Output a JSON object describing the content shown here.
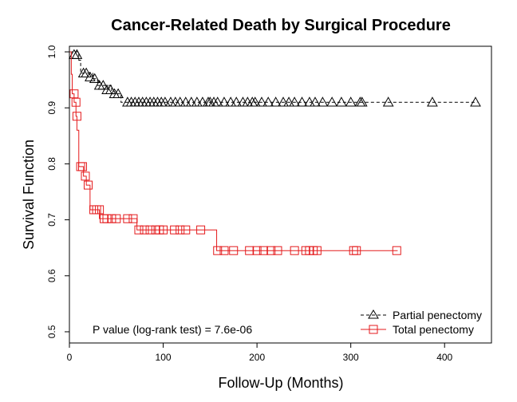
{
  "chart_data": {
    "type": "line",
    "title": "Cancer-Related Death by Surgical Procedure",
    "xlabel": "Follow-Up (Months)",
    "ylabel": "Survival Function",
    "xlim": [
      0,
      450
    ],
    "ylim": [
      0.48,
      1.01
    ],
    "x_ticks": [
      0,
      100,
      200,
      300,
      400
    ],
    "y_ticks": [
      0.5,
      0.6,
      0.7,
      0.8,
      0.9,
      1.0
    ],
    "x_tick_labels": [
      "0",
      "100",
      "200",
      "300",
      "400"
    ],
    "y_tick_labels": [
      "0.5",
      "0.6",
      "0.7",
      "0.8",
      "0.9",
      "1.0"
    ],
    "annotation": "P value (log-rank test) = 7.6e-06",
    "legend_position": "bottom-right",
    "series": [
      {
        "name": "Partial penectomy",
        "color": "#000000",
        "line_style": "dashed",
        "marker": "triangle",
        "step": [
          [
            0,
            1.0
          ],
          [
            10,
            1.0
          ],
          [
            10,
            0.985
          ],
          [
            12,
            0.985
          ],
          [
            12,
            0.962
          ],
          [
            25,
            0.962
          ],
          [
            25,
            0.952
          ],
          [
            30,
            0.952
          ],
          [
            30,
            0.94
          ],
          [
            45,
            0.94
          ],
          [
            45,
            0.925
          ],
          [
            55,
            0.925
          ],
          [
            55,
            0.91
          ],
          [
            435,
            0.91
          ]
        ],
        "censor_x": [
          5,
          8,
          15,
          18,
          22,
          27,
          32,
          36,
          40,
          44,
          48,
          52,
          62,
          66,
          70,
          74,
          78,
          82,
          86,
          90,
          94,
          98,
          102,
          108,
          113,
          118,
          124,
          130,
          136,
          142,
          148,
          150,
          154,
          158,
          165,
          172,
          178,
          185,
          190,
          195,
          198,
          205,
          212,
          220,
          228,
          234,
          240,
          248,
          256,
          262,
          270,
          280,
          290,
          300,
          310,
          312,
          340,
          387,
          433
        ],
        "censor_y": [
          0.995,
          0.995,
          0.962,
          0.962,
          0.955,
          0.952,
          0.94,
          0.94,
          0.932,
          0.932,
          0.925,
          0.925,
          0.91,
          0.91,
          0.91,
          0.91,
          0.91,
          0.91,
          0.91,
          0.91,
          0.91,
          0.91,
          0.91,
          0.91,
          0.91,
          0.91,
          0.91,
          0.91,
          0.91,
          0.91,
          0.91,
          0.91,
          0.91,
          0.91,
          0.91,
          0.91,
          0.91,
          0.91,
          0.91,
          0.91,
          0.91,
          0.91,
          0.91,
          0.91,
          0.91,
          0.91,
          0.91,
          0.91,
          0.91,
          0.91,
          0.91,
          0.91,
          0.91,
          0.91,
          0.91,
          0.91,
          0.91,
          0.91,
          0.91
        ]
      },
      {
        "name": "Total penectomy",
        "color": "#e41a1c",
        "line_style": "solid",
        "marker": "square",
        "step": [
          [
            0,
            1.0
          ],
          [
            2,
            1.0
          ],
          [
            2,
            0.96
          ],
          [
            3,
            0.96
          ],
          [
            3,
            0.925
          ],
          [
            5,
            0.925
          ],
          [
            5,
            0.91
          ],
          [
            7,
            0.91
          ],
          [
            7,
            0.885
          ],
          [
            8,
            0.885
          ],
          [
            8,
            0.86
          ],
          [
            10,
            0.86
          ],
          [
            10,
            0.795
          ],
          [
            15,
            0.795
          ],
          [
            15,
            0.778
          ],
          [
            18,
            0.778
          ],
          [
            18,
            0.762
          ],
          [
            22,
            0.762
          ],
          [
            22,
            0.718
          ],
          [
            32,
            0.718
          ],
          [
            32,
            0.702
          ],
          [
            72,
            0.702
          ],
          [
            72,
            0.682
          ],
          [
            157,
            0.682
          ],
          [
            157,
            0.645
          ],
          [
            350,
            0.645
          ]
        ],
        "censor_x": [
          5,
          7,
          8,
          12,
          14,
          17,
          20,
          26,
          29,
          32,
          37,
          40,
          45,
          50,
          62,
          68,
          74,
          80,
          86,
          92,
          96,
          100,
          112,
          118,
          124,
          140,
          158,
          165,
          175,
          192,
          200,
          207,
          215,
          222,
          240,
          252,
          256,
          260,
          264,
          303,
          306,
          349
        ],
        "censor_y": [
          0.925,
          0.91,
          0.885,
          0.795,
          0.795,
          0.778,
          0.762,
          0.718,
          0.718,
          0.718,
          0.702,
          0.702,
          0.702,
          0.702,
          0.702,
          0.702,
          0.682,
          0.682,
          0.682,
          0.682,
          0.682,
          0.682,
          0.682,
          0.682,
          0.682,
          0.682,
          0.645,
          0.645,
          0.645,
          0.645,
          0.645,
          0.645,
          0.645,
          0.645,
          0.645,
          0.645,
          0.645,
          0.645,
          0.645,
          0.645,
          0.645,
          0.645
        ]
      }
    ]
  }
}
